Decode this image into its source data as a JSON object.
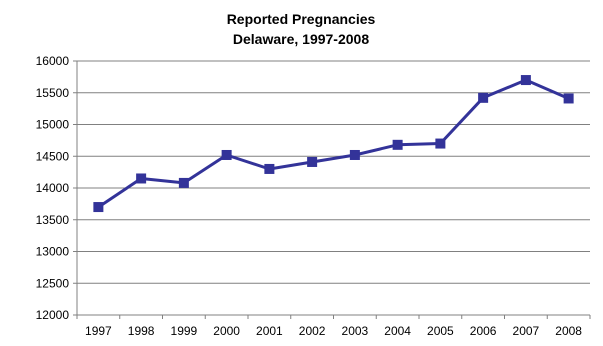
{
  "chart_data": {
    "type": "line",
    "title": "Reported Pregnancies",
    "subtitle": "Delaware, 1997-2008",
    "xlabel": "",
    "ylabel": "",
    "categories": [
      "1997",
      "1998",
      "1999",
      "2000",
      "2001",
      "2002",
      "2003",
      "2004",
      "2005",
      "2006",
      "2007",
      "2008"
    ],
    "series": [
      {
        "values": [
          13700,
          14150,
          14080,
          14520,
          14300,
          14410,
          14520,
          14680,
          14700,
          15420,
          15700,
          15410
        ]
      }
    ],
    "ylim": [
      12000,
      16000
    ],
    "yticks": [
      "12000",
      "12500",
      "13000",
      "13500",
      "14000",
      "14500",
      "15000",
      "15500",
      "16000"
    ],
    "grid": true,
    "legend": "none",
    "colors": {
      "series": "#333399",
      "grid": "#808080",
      "axis": "#808080"
    }
  }
}
